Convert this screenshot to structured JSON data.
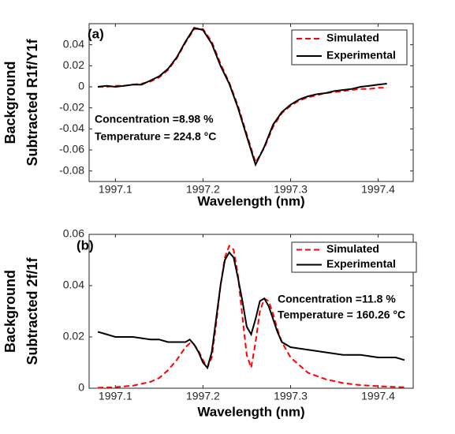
{
  "chart_data": [
    {
      "type": "line",
      "panel_label": "(a)",
      "xlabel": "Wavelength (nm)",
      "ylabel": [
        "Background",
        "Subtracted R1f/Y1f"
      ],
      "annotations": [
        "Concentration =8.98 %",
        "Temperature = 224.8 °C"
      ],
      "x": [
        1997.08,
        1997.09,
        1997.1,
        1997.11,
        1997.12,
        1997.13,
        1997.14,
        1997.15,
        1997.16,
        1997.17,
        1997.18,
        1997.19,
        1997.2,
        1997.21,
        1997.22,
        1997.23,
        1997.24,
        1997.25,
        1997.26,
        1997.27,
        1997.28,
        1997.29,
        1997.3,
        1997.31,
        1997.32,
        1997.33,
        1997.34,
        1997.35,
        1997.36,
        1997.37,
        1997.38,
        1997.39,
        1997.4,
        1997.41
      ],
      "series": [
        {
          "name": "Simulated",
          "color": "#ff0000",
          "line_style": "dashed",
          "values": [
            0,
            0,
            0.001,
            0.001,
            0.002,
            0.003,
            0.005,
            0.009,
            0.016,
            0.027,
            0.042,
            0.055,
            0.055,
            0.043,
            0.022,
            0.004,
            -0.018,
            -0.045,
            -0.072,
            -0.058,
            -0.038,
            -0.025,
            -0.018,
            -0.013,
            -0.01,
            -0.008,
            -0.006,
            -0.005,
            -0.004,
            -0.003,
            -0.002,
            -0.002,
            -0.001,
            -0.001
          ]
        },
        {
          "name": "Experimental",
          "color": "#000000",
          "line_style": "solid",
          "values": [
            0,
            0.001,
            0,
            0.001,
            0.002,
            0.002,
            0.006,
            0.01,
            0.017,
            0.028,
            0.043,
            0.056,
            0.054,
            0.041,
            0.02,
            0.003,
            -0.02,
            -0.047,
            -0.074,
            -0.057,
            -0.036,
            -0.024,
            -0.017,
            -0.012,
            -0.009,
            -0.007,
            -0.006,
            -0.004,
            -0.003,
            -0.002,
            0,
            0.001,
            0.002,
            0.003
          ]
        }
      ],
      "xlim": [
        1997.07,
        1997.44
      ],
      "ylim": [
        -0.09,
        0.06
      ],
      "xticks": [
        1997.1,
        1997.2,
        1997.3,
        1997.4
      ],
      "yticks": [
        -0.08,
        -0.06,
        -0.04,
        -0.02,
        0,
        0.02,
        0.04
      ],
      "legend": "upper right"
    },
    {
      "type": "line",
      "panel_label": "(b)",
      "xlabel": "Wavelength (nm)",
      "ylabel": [
        "Background",
        "Subtracted 2f/1f"
      ],
      "annotations": [
        "Concentration =11.8 %",
        "Temperature = 160.26 °C"
      ],
      "x": [
        1997.08,
        1997.1,
        1997.12,
        1997.14,
        1997.15,
        1997.16,
        1997.17,
        1997.18,
        1997.185,
        1997.19,
        1997.195,
        1997.2,
        1997.205,
        1997.21,
        1997.215,
        1997.22,
        1997.225,
        1997.23,
        1997.235,
        1997.24,
        1997.245,
        1997.25,
        1997.255,
        1997.26,
        1997.265,
        1997.27,
        1997.275,
        1997.28,
        1997.285,
        1997.29,
        1997.3,
        1997.32,
        1997.34,
        1997.36,
        1997.38,
        1997.4,
        1997.42,
        1997.43
      ],
      "series": [
        {
          "name": "Simulated",
          "color": "#ff0000",
          "line_style": "dashed",
          "values": [
            0.0002,
            0.0004,
            0.001,
            0.0025,
            0.004,
            0.007,
            0.011,
            0.016,
            0.0175,
            0.017,
            0.0145,
            0.011,
            0.008,
            0.012,
            0.025,
            0.04,
            0.051,
            0.0555,
            0.054,
            0.044,
            0.028,
            0.013,
            0.008,
            0.018,
            0.03,
            0.035,
            0.034,
            0.029,
            0.023,
            0.018,
            0.012,
            0.006,
            0.0035,
            0.002,
            0.0012,
            0.0008,
            0.0005,
            0.0004
          ]
        },
        {
          "name": "Experimental",
          "color": "#000000",
          "line_style": "solid",
          "values": [
            0.022,
            0.02,
            0.02,
            0.019,
            0.019,
            0.018,
            0.018,
            0.018,
            0.019,
            0.017,
            0.014,
            0.01,
            0.008,
            0.014,
            0.027,
            0.04,
            0.05,
            0.053,
            0.051,
            0.043,
            0.034,
            0.024,
            0.021,
            0.027,
            0.034,
            0.035,
            0.032,
            0.027,
            0.022,
            0.018,
            0.016,
            0.015,
            0.014,
            0.013,
            0.013,
            0.012,
            0.012,
            0.011
          ]
        }
      ],
      "xlim": [
        1997.07,
        1997.44
      ],
      "ylim": [
        0,
        0.06
      ],
      "xticks": [
        1997.1,
        1997.2,
        1997.3,
        1997.4
      ],
      "yticks": [
        0,
        0.02,
        0.04,
        0.06
      ],
      "legend": "upper right"
    }
  ]
}
